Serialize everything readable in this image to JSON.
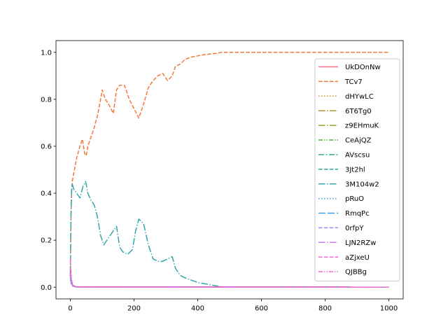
{
  "chart_data": {
    "type": "line",
    "title": "",
    "xlabel": "",
    "ylabel": "",
    "xlim": [
      -45,
      1045
    ],
    "ylim": [
      -0.05,
      1.05
    ],
    "xticks": [
      0,
      200,
      400,
      600,
      800,
      1000
    ],
    "yticks": [
      0.0,
      0.2,
      0.4,
      0.6,
      0.8,
      1.0
    ],
    "xtick_labels": [
      "0",
      "200",
      "400",
      "600",
      "800",
      "1000"
    ],
    "ytick_labels": [
      "0.0",
      "0.2",
      "0.4",
      "0.6",
      "0.8",
      "1.0"
    ],
    "grid": false,
    "legend_position": "center-right",
    "series": [
      {
        "name": "UkDOnNw",
        "color": "#f77189",
        "dash": "solid",
        "points": [
          [
            0,
            0.05
          ],
          [
            3,
            0.02
          ],
          [
            8,
            0.005
          ],
          [
            20,
            0.001
          ],
          [
            1000,
            0.0
          ]
        ]
      },
      {
        "name": "TCv7",
        "color": "#f2793c",
        "dash": "dashed",
        "points": [
          [
            0,
            0.05
          ],
          [
            2,
            0.3
          ],
          [
            4,
            0.4
          ],
          [
            6,
            0.45
          ],
          [
            10,
            0.48
          ],
          [
            20,
            0.55
          ],
          [
            30,
            0.6
          ],
          [
            38,
            0.63
          ],
          [
            45,
            0.57
          ],
          [
            50,
            0.56
          ],
          [
            55,
            0.6
          ],
          [
            65,
            0.64
          ],
          [
            75,
            0.68
          ],
          [
            85,
            0.73
          ],
          [
            95,
            0.8
          ],
          [
            100,
            0.84
          ],
          [
            110,
            0.8
          ],
          [
            120,
            0.78
          ],
          [
            135,
            0.74
          ],
          [
            145,
            0.84
          ],
          [
            155,
            0.86
          ],
          [
            170,
            0.86
          ],
          [
            185,
            0.8
          ],
          [
            200,
            0.76
          ],
          [
            215,
            0.72
          ],
          [
            230,
            0.78
          ],
          [
            245,
            0.85
          ],
          [
            260,
            0.88
          ],
          [
            275,
            0.9
          ],
          [
            290,
            0.91
          ],
          [
            305,
            0.88
          ],
          [
            320,
            0.9
          ],
          [
            330,
            0.94
          ],
          [
            345,
            0.95
          ],
          [
            360,
            0.97
          ],
          [
            380,
            0.98
          ],
          [
            400,
            0.985
          ],
          [
            420,
            0.99
          ],
          [
            440,
            0.993
          ],
          [
            460,
            0.996
          ],
          [
            475,
            1.0
          ],
          [
            1000,
            1.0
          ]
        ]
      },
      {
        "name": "dHYwLC",
        "color": "#cf8c32",
        "dash": "dotted",
        "points": [
          [
            0,
            0.06
          ],
          [
            3,
            0.02
          ],
          [
            8,
            0.005
          ],
          [
            20,
            0.001
          ],
          [
            1000,
            0.0
          ]
        ]
      },
      {
        "name": "6T6Tg0",
        "color": "#b49631",
        "dash": "dashdot",
        "points": [
          [
            0,
            0.04
          ],
          [
            3,
            0.015
          ],
          [
            8,
            0.004
          ],
          [
            20,
            0.001
          ],
          [
            1000,
            0.0
          ]
        ]
      },
      {
        "name": "z9EHmuK",
        "color": "#97a031",
        "dash": "dashdot",
        "points": [
          [
            0,
            0.05
          ],
          [
            3,
            0.02
          ],
          [
            8,
            0.005
          ],
          [
            20,
            0.001
          ],
          [
            1000,
            0.0
          ]
        ]
      },
      {
        "name": "CeAjQZ",
        "color": "#50b131",
        "dash": "dashdotdot",
        "points": [
          [
            0,
            0.04
          ],
          [
            3,
            0.015
          ],
          [
            8,
            0.004
          ],
          [
            20,
            0.001
          ],
          [
            1000,
            0.0
          ]
        ]
      },
      {
        "name": "AVscsu",
        "color": "#33b07a",
        "dash": "dashdot2",
        "points": [
          [
            0,
            0.05
          ],
          [
            3,
            0.02
          ],
          [
            8,
            0.005
          ],
          [
            20,
            0.001
          ],
          [
            1000,
            0.0
          ]
        ]
      },
      {
        "name": "3Jt2hl",
        "color": "#35ac9a",
        "dash": "dashed",
        "points": [
          [
            0,
            0.06
          ],
          [
            3,
            0.02
          ],
          [
            8,
            0.005
          ],
          [
            20,
            0.001
          ],
          [
            1000,
            0.0
          ]
        ]
      },
      {
        "name": "3M104w2",
        "color": "#36a6ac",
        "dash": "dashdot",
        "points": [
          [
            0,
            0.06
          ],
          [
            2,
            0.3
          ],
          [
            4,
            0.42
          ],
          [
            6,
            0.44
          ],
          [
            10,
            0.42
          ],
          [
            20,
            0.4
          ],
          [
            30,
            0.38
          ],
          [
            40,
            0.43
          ],
          [
            48,
            0.45
          ],
          [
            55,
            0.4
          ],
          [
            65,
            0.37
          ],
          [
            75,
            0.35
          ],
          [
            85,
            0.3
          ],
          [
            95,
            0.22
          ],
          [
            105,
            0.18
          ],
          [
            115,
            0.2
          ],
          [
            125,
            0.22
          ],
          [
            135,
            0.24
          ],
          [
            145,
            0.26
          ],
          [
            155,
            0.17
          ],
          [
            165,
            0.15
          ],
          [
            180,
            0.14
          ],
          [
            195,
            0.16
          ],
          [
            205,
            0.24
          ],
          [
            215,
            0.29
          ],
          [
            230,
            0.27
          ],
          [
            245,
            0.18
          ],
          [
            260,
            0.12
          ],
          [
            275,
            0.11
          ],
          [
            290,
            0.11
          ],
          [
            305,
            0.12
          ],
          [
            320,
            0.13
          ],
          [
            330,
            0.08
          ],
          [
            345,
            0.05
          ],
          [
            360,
            0.04
          ],
          [
            380,
            0.03
          ],
          [
            400,
            0.02
          ],
          [
            420,
            0.015
          ],
          [
            440,
            0.01
          ],
          [
            460,
            0.005
          ],
          [
            475,
            0.0
          ],
          [
            1000,
            0.0
          ]
        ]
      },
      {
        "name": "pRuO",
        "color": "#38a1c9",
        "dash": "dotted",
        "points": [
          [
            0,
            0.05
          ],
          [
            3,
            0.02
          ],
          [
            8,
            0.005
          ],
          [
            20,
            0.001
          ],
          [
            1000,
            0.0
          ]
        ]
      },
      {
        "name": "RmqPc",
        "color": "#3ba3ec",
        "dash": "longdash",
        "points": [
          [
            0,
            0.04
          ],
          [
            3,
            0.015
          ],
          [
            8,
            0.004
          ],
          [
            20,
            0.001
          ],
          [
            1000,
            0.0
          ]
        ]
      },
      {
        "name": "0rfpY",
        "color": "#9491f4",
        "dash": "dashed",
        "points": [
          [
            0,
            0.05
          ],
          [
            3,
            0.02
          ],
          [
            8,
            0.005
          ],
          [
            20,
            0.001
          ],
          [
            1000,
            0.0
          ]
        ]
      },
      {
        "name": "LJN2RZw",
        "color": "#cc7af4",
        "dash": "dashdot",
        "points": [
          [
            0,
            0.06
          ],
          [
            3,
            0.02
          ],
          [
            8,
            0.005
          ],
          [
            20,
            0.001
          ],
          [
            1000,
            0.0
          ]
        ]
      },
      {
        "name": "aZjxeU",
        "color": "#f45fe0",
        "dash": "dashed",
        "points": [
          [
            0,
            0.08
          ],
          [
            3,
            0.03
          ],
          [
            8,
            0.008
          ],
          [
            20,
            0.001
          ],
          [
            1000,
            0.0
          ]
        ]
      },
      {
        "name": "QJBBg",
        "color": "#f668c2",
        "dash": "dashdotdot",
        "points": [
          [
            0,
            0.12
          ],
          [
            2,
            0.06
          ],
          [
            5,
            0.02
          ],
          [
            10,
            0.005
          ],
          [
            20,
            0.001
          ],
          [
            1000,
            0.0
          ]
        ]
      }
    ]
  }
}
